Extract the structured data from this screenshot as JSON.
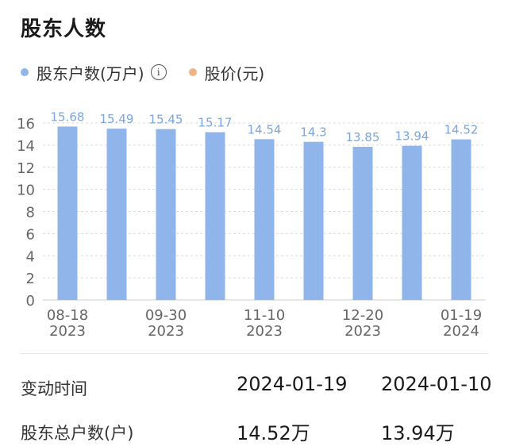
{
  "section": {
    "title": "股东人数"
  },
  "legend": [
    {
      "label": "股东户数(万户)",
      "color": "#8fb5ea",
      "info_icon": "info-icon"
    },
    {
      "label": "股价(元)",
      "color": "#f0b386"
    }
  ],
  "chart_data": {
    "type": "bar",
    "series": [
      {
        "name": "股东户数(万户)",
        "values": [
          15.68,
          15.49,
          15.45,
          15.17,
          14.54,
          14.3,
          13.85,
          13.94,
          14.52
        ]
      }
    ],
    "data_labels": [
      "15.68",
      "15.49",
      "15.45",
      "15.17",
      "14.54",
      "14.3",
      "13.85",
      "13.94",
      "14.52"
    ],
    "x_tick_labels": [
      {
        "date": "08-18",
        "year": "2023"
      },
      {
        "date": "09-30",
        "year": "2023"
      },
      {
        "date": "11-10",
        "year": "2023"
      },
      {
        "date": "12-20",
        "year": "2023"
      },
      {
        "date": "01-19",
        "year": "2024"
      }
    ],
    "y_ticks": [
      "0",
      "2",
      "4",
      "6",
      "8",
      "10",
      "12",
      "14",
      "16"
    ],
    "ylim": [
      0,
      16
    ],
    "bar_color": "#8fb5ea",
    "label_color": "#7aa6e0",
    "grid": true
  },
  "table": {
    "rows": [
      {
        "label": "变动时间",
        "values": [
          "2024-01-19",
          "2024-01-10"
        ]
      },
      {
        "label": "股东总户数(户)",
        "values": [
          "14.52万",
          "13.94万"
        ]
      }
    ]
  }
}
